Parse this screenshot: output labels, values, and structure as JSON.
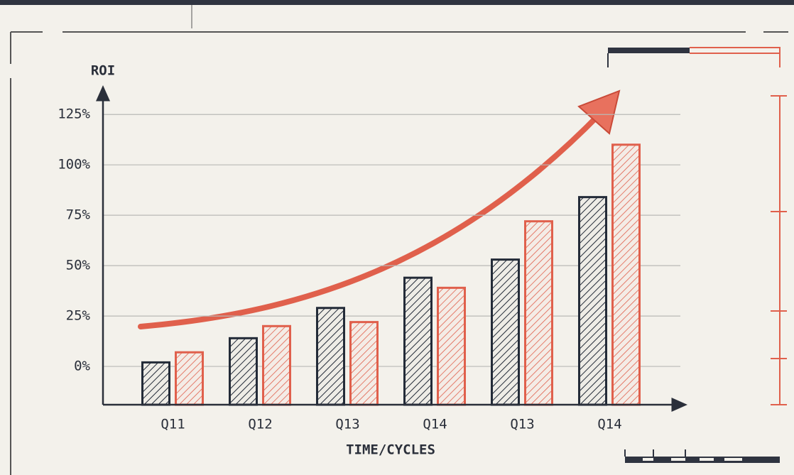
{
  "chart_data": {
    "type": "bar",
    "y_label": "ROI",
    "x_label": "TIME/CYCLES",
    "categories": [
      "Q11",
      "Q12",
      "Q13",
      "Q14",
      "Q13",
      "Q14"
    ],
    "series": [
      {
        "color": "#232b38",
        "values": [
          2,
          14,
          29,
          44,
          53,
          84
        ]
      },
      {
        "color": "#e0604c",
        "values": [
          7,
          20,
          22,
          39,
          72,
          110
        ]
      }
    ],
    "ylim": [
      -19,
      136
    ],
    "yticks": [
      {
        "value": 0,
        "label": "0%"
      },
      {
        "value": 25,
        "label": "25%"
      },
      {
        "value": 50,
        "label": "50%"
      },
      {
        "value": 75,
        "label": "75%"
      },
      {
        "value": 100,
        "label": "100%"
      },
      {
        "value": 125,
        "label": "125%"
      }
    ],
    "grid": true
  }
}
